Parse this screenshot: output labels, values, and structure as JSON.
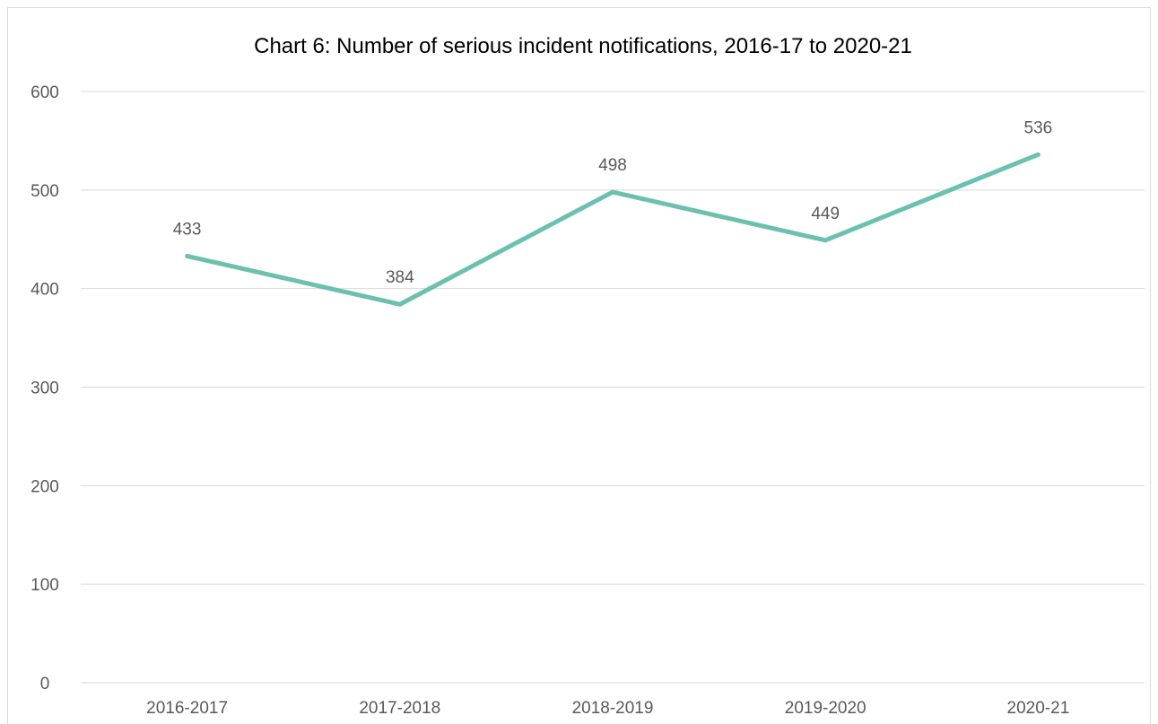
{
  "chart_data": {
    "type": "line",
    "title": "Chart 6: Number of serious incident notifications, 2016-17 to 2020-21",
    "categories": [
      "2016-2017",
      "2017-2018",
      "2018-2019",
      "2019-2020",
      "2020-21"
    ],
    "series": [
      {
        "values": [
          433,
          384,
          498,
          449,
          536
        ],
        "color": "#6cc0b0"
      }
    ],
    "xlabel": "",
    "ylabel": "",
    "ylim": [
      0,
      600
    ],
    "yticks": [
      "0",
      "100",
      "200",
      "300",
      "400",
      "500",
      "600"
    ],
    "data_labels": [
      "433",
      "384",
      "498",
      "449",
      "536"
    ],
    "grid": true,
    "legend": "none"
  },
  "colors": {
    "gridline": "#d9d9d9",
    "text": "#595959",
    "title": "#000000"
  }
}
